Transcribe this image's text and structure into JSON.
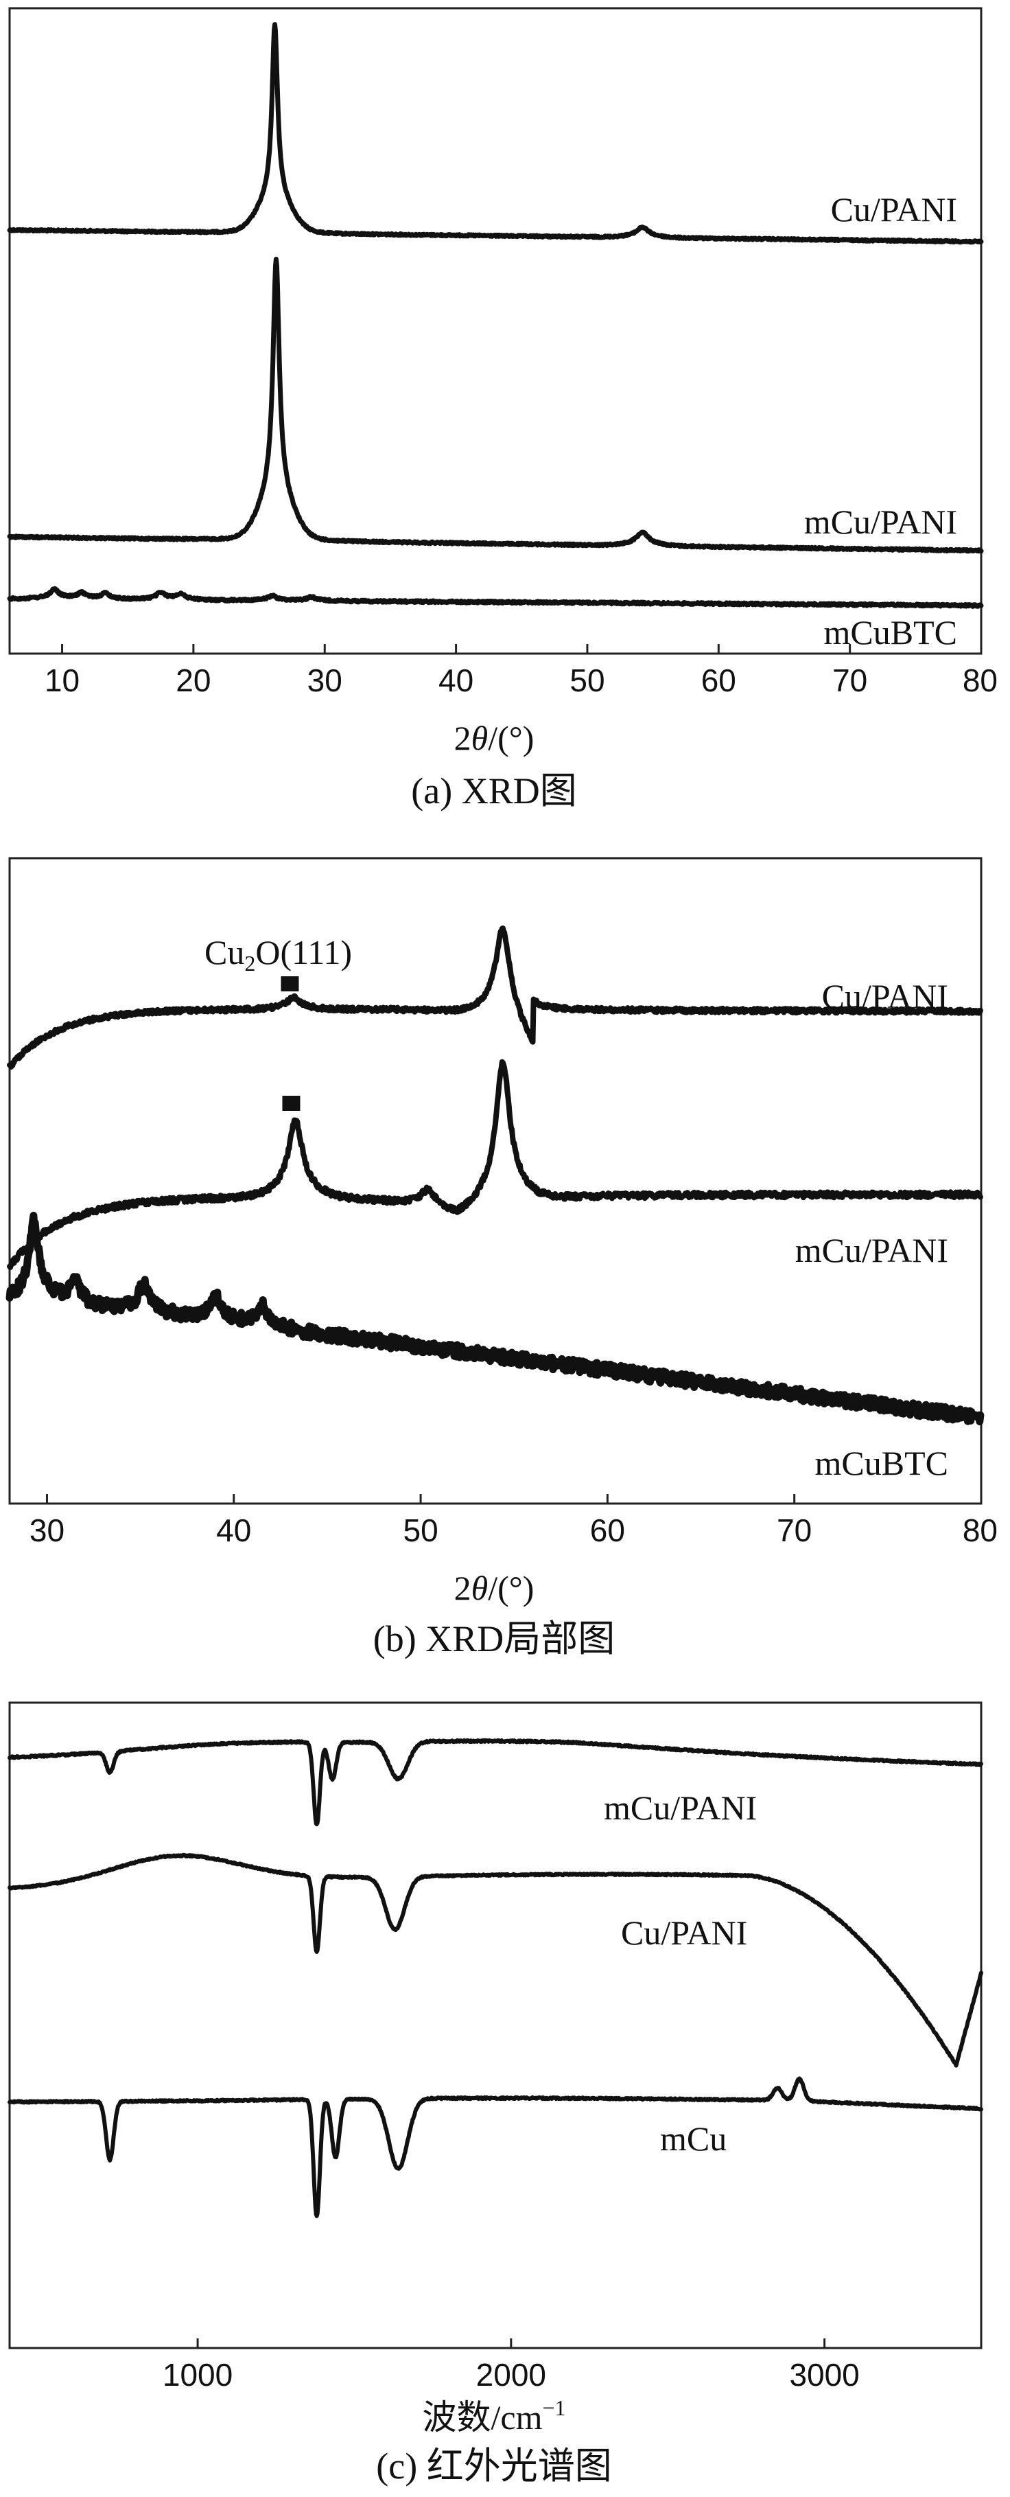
{
  "chart_data": [
    {
      "type": "line",
      "caption": "(a) XRD图",
      "xlabel_prefix": "2",
      "xlabel_theta": "θ",
      "xlabel_suffix": "/(°)",
      "xlim": [
        6,
        80
      ],
      "xticks": [
        10,
        20,
        30,
        40,
        50,
        60,
        70,
        80
      ],
      "tick_labels": [
        "10",
        "20",
        "30",
        "40",
        "50",
        "60",
        "70",
        "80"
      ],
      "series": [
        {
          "name": "Cu/PANI",
          "peaks": [
            [
              26.2,
              1.0
            ],
            [
              54.2,
              0.05
            ]
          ]
        },
        {
          "name": "mCu/PANI",
          "peaks": [
            [
              26.3,
              1.0
            ],
            [
              54.2,
              0.05
            ]
          ]
        },
        {
          "name": "mCuBTC",
          "peaks": [
            [
              9.4,
              0.5
            ],
            [
              11.5,
              0.3
            ],
            [
              13.3,
              0.3
            ],
            [
              17.5,
              0.35
            ],
            [
              19.0,
              0.3
            ],
            [
              26.0,
              0.25
            ],
            [
              29.0,
              0.2
            ]
          ]
        }
      ]
    },
    {
      "type": "line",
      "caption": "(b) XRD局部图",
      "xlabel_prefix": "2",
      "xlabel_theta": "θ",
      "xlabel_suffix": "/(°)",
      "xlim": [
        28,
        80
      ],
      "xticks": [
        30,
        40,
        50,
        60,
        70,
        80
      ],
      "tick_labels": [
        "30",
        "40",
        "50",
        "60",
        "70",
        "80"
      ],
      "annotation": {
        "text_base": "Cu",
        "text_sub": "2",
        "text_rest": "O(111)",
        "x": 43.0
      },
      "series": [
        {
          "name": "Cu/PANI",
          "peaks": [
            [
              43.2,
              0.12
            ],
            [
              54.4,
              1.0
            ]
          ]
        },
        {
          "name": "mCu/PANI",
          "peaks": [
            [
              43.3,
              0.55
            ],
            [
              50.4,
              0.12
            ],
            [
              54.4,
              1.0
            ]
          ]
        },
        {
          "name": "mCuBTC",
          "peaks": [
            [
              29.3,
              1.0
            ],
            [
              31.5,
              0.3
            ],
            [
              35.2,
              0.35
            ],
            [
              39.0,
              0.3
            ],
            [
              41.5,
              0.25
            ]
          ]
        }
      ]
    },
    {
      "type": "line",
      "caption": "(c) 红外光谱图",
      "xlabel": "波数/cm",
      "xlabel_sup": "−1",
      "xlim": [
        400,
        3500
      ],
      "xticks": [
        1000,
        2000,
        3000
      ],
      "tick_labels": [
        "1000",
        "2000",
        "3000"
      ],
      "series": [
        {
          "name": "mCu/PANI",
          "dips": [
            [
              720,
              0.25
            ],
            [
              1380,
              1.0
            ],
            [
              1430,
              0.45
            ],
            [
              1640,
              0.45
            ]
          ]
        },
        {
          "name": "Cu/PANI",
          "dips": [
            [
              1380,
              1.0
            ],
            [
              1630,
              0.7
            ],
            [
              3420,
              1.0
            ]
          ]
        },
        {
          "name": "mCu",
          "dips": [
            [
              720,
              0.5
            ],
            [
              1380,
              1.0
            ],
            [
              1440,
              0.5
            ],
            [
              1640,
              0.6
            ]
          ],
          "bumps": [
            [
              2850,
              0.2
            ],
            [
              2920,
              0.35
            ]
          ]
        }
      ]
    }
  ]
}
